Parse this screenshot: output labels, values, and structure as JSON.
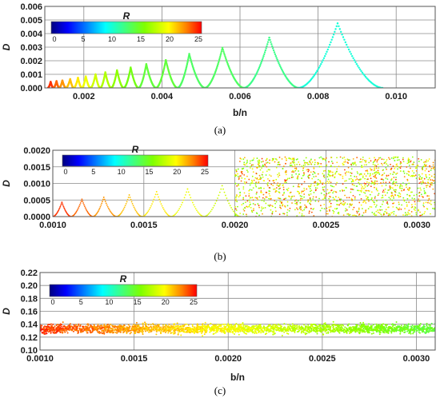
{
  "colorbar": {
    "title": "R",
    "ticks": [
      "0",
      "5",
      "10",
      "15",
      "20",
      "25"
    ],
    "min": 0,
    "max": 25
  },
  "chart_data": [
    {
      "type": "scatter",
      "panel_label": "(a)",
      "xlabel": "b/n",
      "ylabel": "D",
      "xlim": [
        0.001,
        0.011
      ],
      "ylim": [
        0,
        0.006
      ],
      "xticks": [
        "0.002",
        "0.004",
        "0.006",
        "0.008",
        "0.010"
      ],
      "xtick_values": [
        0.002,
        0.004,
        0.006,
        0.008,
        0.01
      ],
      "yticks": [
        "0.000",
        "0.001",
        "0.002",
        "0.003",
        "0.004",
        "0.005",
        "0.006"
      ],
      "ytick_values": [
        0,
        0.001,
        0.002,
        0.003,
        0.004,
        0.005,
        0.006
      ],
      "grid": true,
      "legend": "colorbar top-left",
      "series": [
        {
          "description": "cusp peaks (b/n, D, R)",
          "peaks": [
            {
              "x": 0.00115,
              "y": 0.00045,
              "r": 24
            },
            {
              "x": 0.0013,
              "y": 0.0005,
              "r": 23
            },
            {
              "x": 0.00145,
              "y": 0.00055,
              "r": 22
            },
            {
              "x": 0.00165,
              "y": 0.00065,
              "r": 21
            },
            {
              "x": 0.00185,
              "y": 0.00075,
              "r": 20
            },
            {
              "x": 0.00205,
              "y": 0.00085,
              "r": 19
            },
            {
              "x": 0.0023,
              "y": 0.001,
              "r": 18
            },
            {
              "x": 0.00255,
              "y": 0.00115,
              "r": 17
            },
            {
              "x": 0.00285,
              "y": 0.0013,
              "r": 16
            },
            {
              "x": 0.0032,
              "y": 0.0015,
              "r": 15
            },
            {
              "x": 0.0036,
              "y": 0.00175,
              "r": 14
            },
            {
              "x": 0.0041,
              "y": 0.00205,
              "r": 14
            },
            {
              "x": 0.0047,
              "y": 0.0025,
              "r": 13
            },
            {
              "x": 0.00555,
              "y": 0.00295,
              "r": 13
            },
            {
              "x": 0.00675,
              "y": 0.0037,
              "r": 12
            },
            {
              "x": 0.0085,
              "y": 0.00475,
              "r": 10
            }
          ],
          "zeros": [
            0.00108,
            0.00122,
            0.00137,
            0.00154,
            0.00174,
            0.00195,
            0.00217,
            0.00242,
            0.0027,
            0.00302,
            0.0034,
            0.00385,
            0.0044,
            0.0051,
            0.0061,
            0.0075,
            0.00965,
            0.011
          ]
        }
      ]
    },
    {
      "type": "scatter",
      "panel_label": "(b)",
      "xlabel": "",
      "ylabel": "D",
      "xlim": [
        0.001,
        0.0031
      ],
      "ylim": [
        0,
        0.002
      ],
      "xticks": [
        "0.0010",
        "0.0015",
        "0.0020",
        "0.0025",
        "0.0030"
      ],
      "xtick_values": [
        0.001,
        0.0015,
        0.002,
        0.0025,
        0.003
      ],
      "yticks": [
        "0.0000",
        "0.0005",
        "0.0010",
        "0.0015",
        "0.0020"
      ],
      "ytick_values": [
        0,
        0.0005,
        0.001,
        0.0015,
        0.002
      ],
      "grid": true,
      "legend": "colorbar top-left",
      "series": [
        {
          "description": "dotted cusps for b/n < 0.0020",
          "peaks": [
            {
              "x": 0.00105,
              "y": 0.00043,
              "r": 24
            },
            {
              "x": 0.00116,
              "y": 0.00052,
              "r": 23
            },
            {
              "x": 0.00128,
              "y": 0.00058,
              "r": 22
            },
            {
              "x": 0.00142,
              "y": 0.00065,
              "r": 21
            },
            {
              "x": 0.00157,
              "y": 0.00075,
              "r": 20
            },
            {
              "x": 0.00174,
              "y": 0.00083,
              "r": 19
            },
            {
              "x": 0.00193,
              "y": 0.00093,
              "r": 18
            }
          ],
          "zeros": [
            0.001,
            0.0011,
            0.00122,
            0.00135,
            0.00149,
            0.00165,
            0.00183,
            0.00203
          ]
        },
        {
          "description": "scattered cloud for b/n >= 0.0020",
          "x_range": [
            0.002,
            0.0031
          ],
          "y_range": [
            0,
            0.0018
          ],
          "r_range": [
            14,
            24
          ]
        }
      ]
    },
    {
      "type": "scatter",
      "panel_label": "(c)",
      "xlabel": "b/n",
      "ylabel": "D",
      "xlim": [
        0.001,
        0.0031
      ],
      "ylim": [
        0.1,
        0.22
      ],
      "xticks": [
        "0.0010",
        "0.0015",
        "0.0020",
        "0.0025",
        "0.0030"
      ],
      "xtick_values": [
        0.001,
        0.0015,
        0.002,
        0.0025,
        0.003
      ],
      "yticks": [
        "0.10",
        "0.12",
        "0.14",
        "0.16",
        "0.18",
        "0.20",
        "0.22"
      ],
      "ytick_values": [
        0.1,
        0.12,
        0.14,
        0.16,
        0.18,
        0.2,
        0.22
      ],
      "grid": true,
      "legend": "colorbar top-left",
      "series": [
        {
          "description": "noisy band",
          "y_center": 0.133,
          "y_spread": 0.012,
          "r_start": 24,
          "r_end": 14
        }
      ]
    }
  ]
}
